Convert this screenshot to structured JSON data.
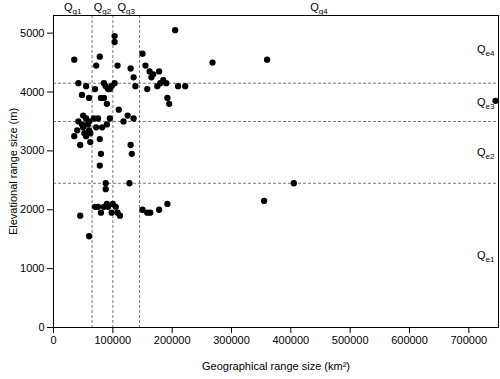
{
  "chart_data": {
    "type": "scatter",
    "x_label": "Geographical range size (km²)",
    "y_label": "Elevational range size (m)",
    "color": "#000000",
    "marker": "circle",
    "xlim": [
      0,
      750000
    ],
    "ylim": [
      0,
      5300
    ],
    "xticks": [
      0,
      100000,
      200000,
      300000,
      400000,
      500000,
      600000,
      700000
    ],
    "yticks": [
      0,
      1000,
      2000,
      3000,
      4000,
      5000
    ],
    "x_regions": [
      {
        "label": "Qg1",
        "from": 0,
        "to": 65000
      },
      {
        "label": "Qg2",
        "from": 65000,
        "to": 100000
      },
      {
        "label": "Qg3",
        "from": 100000,
        "to": 145000
      },
      {
        "label": "Qg4",
        "from": 145000,
        "to": 750000
      }
    ],
    "y_regions": [
      {
        "label": "Qe1",
        "from": 0,
        "to": 2450
      },
      {
        "label": "Qe2",
        "from": 2450,
        "to": 3500
      },
      {
        "label": "Qe3",
        "from": 3500,
        "to": 4150
      },
      {
        "label": "Qe4",
        "from": 4150,
        "to": 5300
      }
    ],
    "x": [
      35000,
      42000,
      48000,
      55000,
      60000,
      35000,
      40000,
      45000,
      48000,
      50000,
      52000,
      55000,
      58000,
      60000,
      62000,
      50000,
      55000,
      60000,
      62000,
      45000,
      60000,
      42000,
      70000,
      72000,
      78000,
      85000,
      88000,
      92000,
      95000,
      98000,
      80000,
      90000,
      85000,
      68000,
      72000,
      75000,
      78000,
      80000,
      82000,
      90000,
      95000,
      78000,
      70000,
      75000,
      80000,
      85000,
      88000,
      88000,
      90000,
      92000,
      98000,
      100000,
      103000,
      103000,
      108000,
      103000,
      110000,
      118000,
      125000,
      130000,
      135000,
      135000,
      138000,
      132000,
      130000,
      128000,
      105000,
      108000,
      112000,
      150000,
      155000,
      158000,
      162000,
      165000,
      168000,
      175000,
      178000,
      180000,
      185000,
      190000,
      192000,
      195000,
      205000,
      210000,
      222000,
      268000,
      360000,
      150000,
      158000,
      163000,
      178000,
      192000,
      355000,
      405000,
      745000
    ],
    "values": [
      4550,
      4150,
      3950,
      4100,
      3900,
      3250,
      3350,
      3100,
      3450,
      3400,
      3300,
      3250,
      3450,
      3350,
      3300,
      3600,
      3550,
      3500,
      3150,
      1900,
      1550,
      3500,
      4050,
      4450,
      4600,
      4150,
      4100,
      4050,
      4050,
      4100,
      3900,
      3800,
      3900,
      3550,
      3400,
      3550,
      3200,
      2950,
      3400,
      3450,
      3550,
      2750,
      2050,
      2050,
      1950,
      2050,
      2450,
      2350,
      2100,
      2050,
      1950,
      2100,
      4950,
      4850,
      4450,
      4150,
      3700,
      3500,
      3600,
      4400,
      4250,
      3550,
      4100,
      2950,
      3100,
      2450,
      2050,
      1950,
      1900,
      4650,
      4450,
      4050,
      4350,
      4250,
      4300,
      4100,
      4350,
      4150,
      4200,
      4150,
      3900,
      3800,
      5050,
      4100,
      4100,
      4500,
      4550,
      2000,
      1950,
      1950,
      2000,
      2100,
      2150,
      2450,
      3850
    ]
  }
}
